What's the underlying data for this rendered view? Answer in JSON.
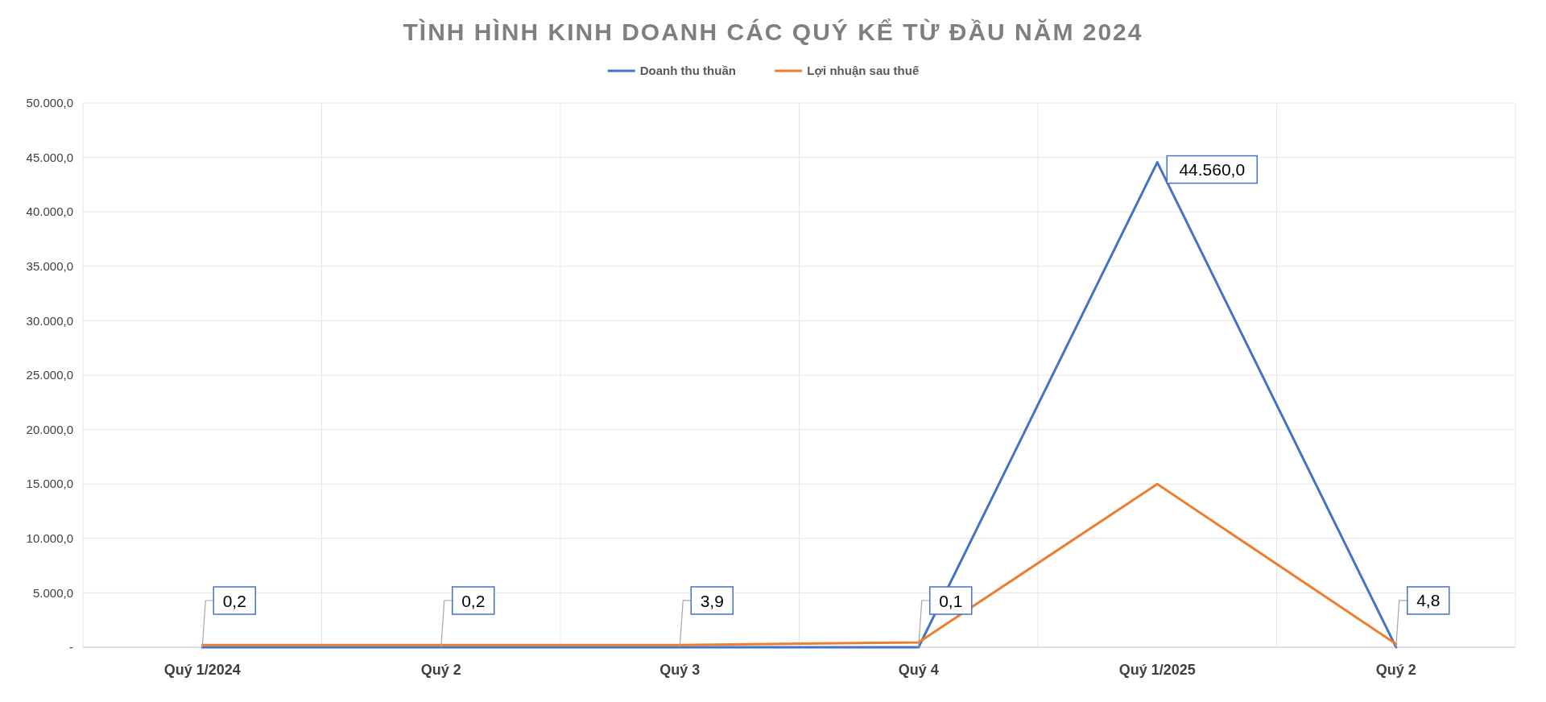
{
  "chart_data": {
    "type": "line",
    "title": "TÌNH HÌNH KINH DOANH CÁC QUÝ KỂ TỪ ĐẦU NĂM 2024",
    "categories": [
      "Quý 1/2024",
      "Quý 2",
      "Quý 3",
      "Quý 4",
      "Quý 1/2025",
      "Quý 2"
    ],
    "series": [
      {
        "name": "Doanh thu thuần",
        "color": "#4472c4",
        "values": [
          0.2,
          0.2,
          3.9,
          0.1,
          44560,
          4.8
        ],
        "value_labels": [
          "0,2",
          "0,2",
          "3,9",
          "0,1",
          "44.560,0",
          "4,8"
        ]
      },
      {
        "name": "Lợi nhuận sau thuế",
        "color": "#ed7d31",
        "values": [
          200,
          200,
          200,
          450,
          15000,
          300
        ]
      }
    ],
    "ylim": [
      0,
      50000
    ],
    "yticks": [
      {
        "value": 0,
        "label": "-"
      },
      {
        "value": 5000,
        "label": "5.000,0"
      },
      {
        "value": 10000,
        "label": "10.000,0"
      },
      {
        "value": 15000,
        "label": "15.000,0"
      },
      {
        "value": 20000,
        "label": "20.000,0"
      },
      {
        "value": 25000,
        "label": "25.000,0"
      },
      {
        "value": 30000,
        "label": "30.000,0"
      },
      {
        "value": 35000,
        "label": "35.000,0"
      },
      {
        "value": 40000,
        "label": "40.000,0"
      },
      {
        "value": 45000,
        "label": "45.000,0"
      },
      {
        "value": 50000,
        "label": "50.000,0"
      }
    ],
    "grid": true,
    "legend": "top",
    "line_style": "solid",
    "marker": "none"
  }
}
